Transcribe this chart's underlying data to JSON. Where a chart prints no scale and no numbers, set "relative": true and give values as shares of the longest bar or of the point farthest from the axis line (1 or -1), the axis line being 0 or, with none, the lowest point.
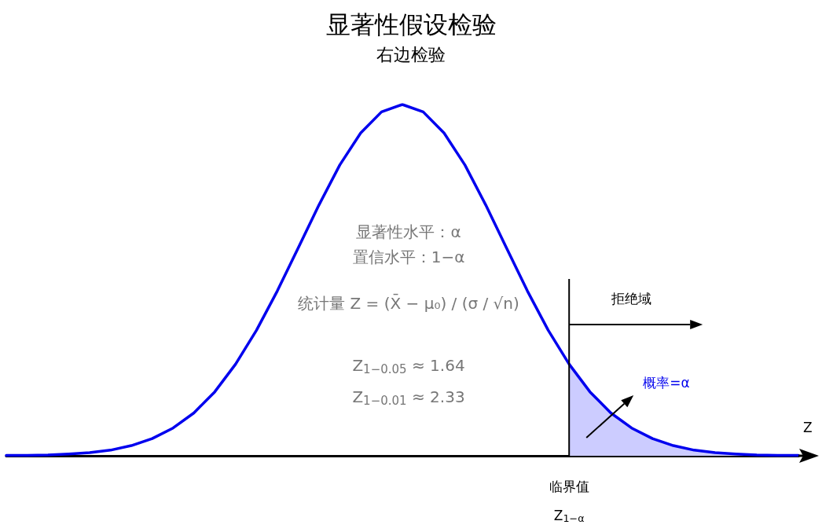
{
  "chart_data": {
    "type": "line",
    "title": "显著性假设检验",
    "subtitle": "右边检验",
    "xlabel": "Z",
    "relative": true,
    "marker": "none",
    "categories": [
      null,
      null,
      null,
      null,
      null,
      null,
      null,
      null,
      null,
      null,
      null,
      null,
      null,
      null,
      null,
      null,
      null,
      null,
      null,
      null,
      null,
      null,
      null,
      null,
      null,
      null,
      null,
      null,
      null,
      null,
      null,
      null,
      null,
      null,
      null,
      null,
      null,
      null,
      null
    ],
    "series": [
      {
        "color": "#0000ee",
        "values": [
          0.001,
          0.001,
          0.002,
          0.005,
          0.009,
          0.016,
          0.029,
          0.049,
          0.079,
          0.122,
          0.182,
          0.261,
          0.357,
          0.469,
          0.591,
          0.714,
          0.828,
          0.919,
          0.979,
          1,
          0.979,
          0.919,
          0.828,
          0.714,
          0.591,
          0.469,
          0.357,
          0.261,
          0.182,
          0.122,
          0.079,
          0.049,
          0.029,
          0.016,
          0.009,
          0.005,
          0.002,
          0.001,
          0.001
        ]
      },
      {
        "type": "area",
        "color": "#ccccff",
        "values": [
          null,
          null,
          null,
          null,
          null,
          null,
          null,
          null,
          null,
          null,
          null,
          null,
          null,
          null,
          null,
          null,
          null,
          null,
          null,
          null,
          null,
          null,
          null,
          null,
          null,
          null,
          null,
          0.261,
          0.182,
          0.122,
          0.079,
          0.049,
          0.029,
          0.016,
          0.009,
          0.005,
          0.002,
          0.001,
          0.001
        ]
      }
    ],
    "annotations": [
      "显著性水平：α",
      "置信水平：1−α",
      "统计量 Z = (X̄ − μ₀) / (σ / √n)",
      "Z$_{1−0.05}$ ≈ 1.64",
      "Z$_{1−0.01}$ ≈ 2.33",
      "拒绝域",
      "概率=α",
      "临界值",
      "Z$_{1−α}$"
    ]
  }
}
